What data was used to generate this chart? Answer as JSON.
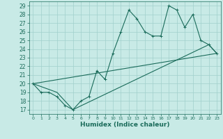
{
  "xlabel": "Humidex (Indice chaleur)",
  "bg_color": "#c8eae6",
  "line_color": "#1a6b5a",
  "grid_color": "#a0d0cc",
  "xlim": [
    -0.5,
    23.5
  ],
  "ylim": [
    16.5,
    29.5
  ],
  "xticks": [
    0,
    1,
    2,
    3,
    4,
    5,
    6,
    7,
    8,
    9,
    10,
    11,
    12,
    13,
    14,
    15,
    16,
    17,
    18,
    19,
    20,
    21,
    22,
    23
  ],
  "yticks": [
    17,
    18,
    19,
    20,
    21,
    22,
    23,
    24,
    25,
    26,
    27,
    28,
    29
  ],
  "line1": [
    [
      0,
      20
    ],
    [
      1,
      19
    ],
    [
      2,
      19
    ],
    [
      3,
      18.5
    ],
    [
      4,
      17.5
    ],
    [
      5,
      17
    ],
    [
      6,
      18
    ],
    [
      7,
      18.5
    ],
    [
      8,
      21.5
    ],
    [
      9,
      20.5
    ],
    [
      10,
      23.5
    ],
    [
      11,
      26
    ],
    [
      12,
      28.5
    ],
    [
      13,
      27.5
    ],
    [
      14,
      26
    ],
    [
      15,
      25.5
    ],
    [
      16,
      25.5
    ],
    [
      17,
      29
    ],
    [
      18,
      28.5
    ],
    [
      19,
      26.5
    ],
    [
      20,
      28
    ],
    [
      21,
      25
    ],
    [
      22,
      24.5
    ],
    [
      23,
      23.5
    ]
  ],
  "line2": [
    [
      0,
      20
    ],
    [
      23,
      23.5
    ]
  ],
  "line3": [
    [
      0,
      20
    ],
    [
      3,
      19
    ],
    [
      5,
      17
    ],
    [
      22,
      24.5
    ],
    [
      23,
      23.5
    ]
  ]
}
